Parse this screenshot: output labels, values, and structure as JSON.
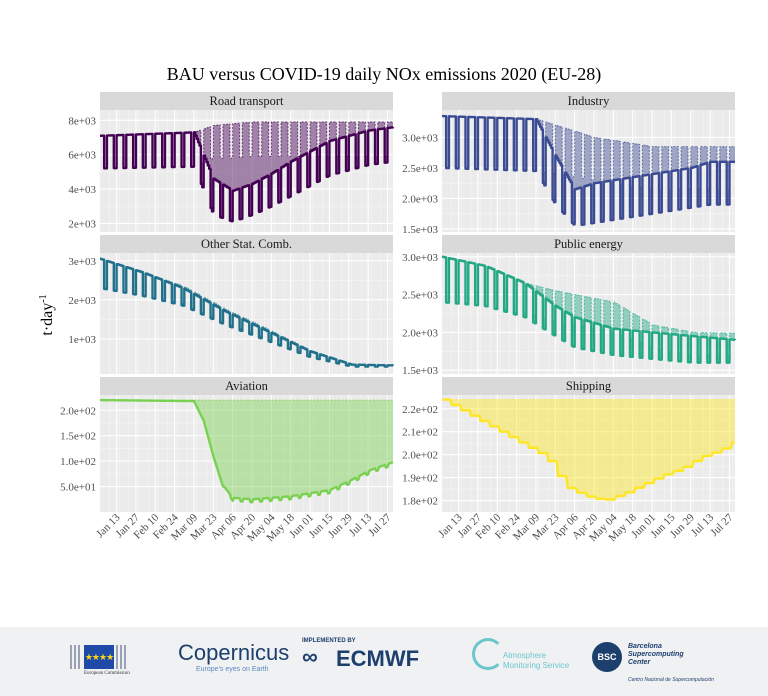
{
  "title": "BAU versus COVID-19 daily NOx emissions 2020 (EU-28)",
  "ylabel": "t·day",
  "ylabel_sup": "-1",
  "date_ticks": [
    "Jan 13",
    "Jan 27",
    "Feb 10",
    "Feb 24",
    "Mar 09",
    "Mar 23",
    "Apr 06",
    "Apr 20",
    "May 04",
    "May 18",
    "Jun 01",
    "Jun 15",
    "Jun 29",
    "Jul 13",
    "Jul 27"
  ],
  "chart_data": [
    {
      "type": "area",
      "name": "Road transport",
      "color": "#440154",
      "y_ticks": [
        "2e+03",
        "4e+03",
        "6e+03",
        "8e+03"
      ],
      "ylim": [
        1500,
        8600
      ],
      "x": [
        "2020-01-01",
        "2020-03-09",
        "2020-03-23",
        "2020-04-06",
        "2020-04-20",
        "2020-05-04",
        "2020-05-18",
        "2020-06-01",
        "2020-06-15",
        "2020-06-29",
        "2020-07-13",
        "2020-07-31"
      ],
      "bau_weekday": [
        7100,
        7300,
        7700,
        7800,
        7900,
        7900,
        7900,
        7900,
        7900,
        7900,
        7900,
        7900
      ],
      "bau_weekend": [
        5200,
        5300,
        5800,
        5800,
        5900,
        5900,
        5900,
        5900,
        5900,
        5900,
        5900,
        5900
      ],
      "covid_weekday": [
        7100,
        7300,
        4600,
        3900,
        4300,
        4900,
        5600,
        6200,
        6800,
        7100,
        7400,
        7600
      ],
      "covid_weekend": [
        5200,
        5300,
        2500,
        2100,
        2500,
        3000,
        3600,
        4200,
        4800,
        5100,
        5400,
        5600
      ]
    },
    {
      "type": "area",
      "name": "Industry",
      "color": "#3b4b93",
      "y_ticks": [
        "1.5e+03",
        "2.0e+03",
        "2.5e+03",
        "3.0e+03"
      ],
      "ylim": [
        1450,
        3450
      ],
      "x": [
        "2020-01-01",
        "2020-03-09",
        "2020-03-23",
        "2020-04-06",
        "2020-04-20",
        "2020-05-04",
        "2020-05-18",
        "2020-06-01",
        "2020-06-15",
        "2020-06-29",
        "2020-07-13",
        "2020-07-31"
      ],
      "bau_weekday": [
        3350,
        3300,
        3200,
        3100,
        3000,
        2950,
        2900,
        2850,
        2850,
        2850,
        2850,
        2850
      ],
      "bau_weekend": [
        2500,
        2450,
        2400,
        2350,
        2300,
        2250,
        2200,
        2150,
        2150,
        2150,
        2150,
        2150
      ],
      "covid_weekday": [
        3350,
        3300,
        2700,
        2150,
        2250,
        2300,
        2350,
        2400,
        2450,
        2500,
        2600,
        2600
      ],
      "covid_weekend": [
        2500,
        2450,
        1900,
        1550,
        1600,
        1650,
        1700,
        1750,
        1800,
        1850,
        1900,
        1900
      ]
    },
    {
      "type": "area",
      "name": "Other Stat. Comb.",
      "color": "#21718c",
      "y_ticks": [
        "1e+03",
        "2e+03",
        "3e+03"
      ],
      "ylim": [
        100,
        3200
      ],
      "x": [
        "2020-01-01",
        "2020-02-01",
        "2020-03-01",
        "2020-04-01",
        "2020-05-01",
        "2020-06-01",
        "2020-07-01",
        "2020-07-31"
      ],
      "bau_weekday": [
        3050,
        2700,
        2350,
        1750,
        1250,
        700,
        350,
        330
      ],
      "bau_weekend": [
        2300,
        2100,
        1900,
        1400,
        1000,
        550,
        300,
        300
      ],
      "covid_weekday": [
        3050,
        2700,
        2300,
        1700,
        1200,
        680,
        340,
        320
      ],
      "covid_weekend": [
        2300,
        2100,
        1850,
        1350,
        950,
        530,
        290,
        290
      ]
    },
    {
      "type": "area",
      "name": "Public energy",
      "color": "#22a884",
      "y_ticks": [
        "1.5e+03",
        "2.0e+03",
        "2.5e+03",
        "3.0e+03"
      ],
      "ylim": [
        1450,
        3050
      ],
      "x": [
        "2020-01-01",
        "2020-02-01",
        "2020-03-01",
        "2020-03-23",
        "2020-04-06",
        "2020-05-04",
        "2020-06-01",
        "2020-07-01",
        "2020-07-31"
      ],
      "bau_weekday": [
        3000,
        2880,
        2650,
        2550,
        2500,
        2400,
        2100,
        2000,
        1990
      ],
      "bau_weekend": [
        2400,
        2350,
        2250,
        2150,
        2100,
        2000,
        1800,
        1700,
        1700
      ],
      "covid_weekday": [
        3000,
        2880,
        2650,
        2350,
        2200,
        2050,
        2000,
        1950,
        1900
      ],
      "covid_weekend": [
        2400,
        2350,
        2200,
        1950,
        1800,
        1700,
        1650,
        1600,
        1600
      ]
    },
    {
      "type": "area",
      "name": "Aviation",
      "color": "#7ad151",
      "y_ticks": [
        "5.0e+01",
        "1.0e+02",
        "1.5e+02",
        "2.0e+02"
      ],
      "ylim": [
        0,
        230
      ],
      "x": [
        "2020-01-01",
        "2020-03-09",
        "2020-03-16",
        "2020-03-23",
        "2020-03-30",
        "2020-04-06",
        "2020-04-20",
        "2020-05-18",
        "2020-06-15",
        "2020-07-01",
        "2020-07-15",
        "2020-07-31"
      ],
      "bau": [
        220,
        220,
        220,
        220,
        220,
        220,
        220,
        220,
        220,
        220,
        220,
        220
      ],
      "covid": [
        220,
        218,
        180,
        110,
        50,
        25,
        22,
        28,
        40,
        60,
        80,
        95
      ]
    },
    {
      "type": "area",
      "name": "Shipping",
      "color": "#fde725",
      "y_ticks": [
        "1.8e+02",
        "1.9e+02",
        "2.0e+02",
        "2.1e+02",
        "2.2e+02"
      ],
      "ylim": [
        175,
        226
      ],
      "x": [
        "2020-01-01",
        "2020-03-16",
        "2020-03-30",
        "2020-04-13",
        "2020-04-27",
        "2020-05-11",
        "2020-05-25",
        "2020-06-08",
        "2020-06-22",
        "2020-07-06",
        "2020-07-20",
        "2020-07-31"
      ],
      "bau": [
        224,
        224,
        224,
        224,
        224,
        224,
        224,
        224,
        224,
        224,
        224,
        224
      ],
      "covid": [
        224,
        199,
        186,
        182,
        180,
        183,
        187,
        191,
        194,
        199,
        202,
        206
      ]
    }
  ],
  "footer": {
    "ec_text": "European Commission",
    "copernicus": "opernicus",
    "copernicus_c": "C",
    "copernicus_tag": "Europe's eyes on Earth",
    "ecmwf_by": "IMPLEMENTED BY",
    "ecmwf": "ECMWF",
    "ams_1": "Atmosphere",
    "ams_2": "Monitoring Service",
    "bsc_logo": "BSC",
    "bsc_1": "Barcelona",
    "bsc_2": "Supercomputing",
    "bsc_3": "Center",
    "bsc_sub": "Centro Nacional de Supercomputación"
  }
}
